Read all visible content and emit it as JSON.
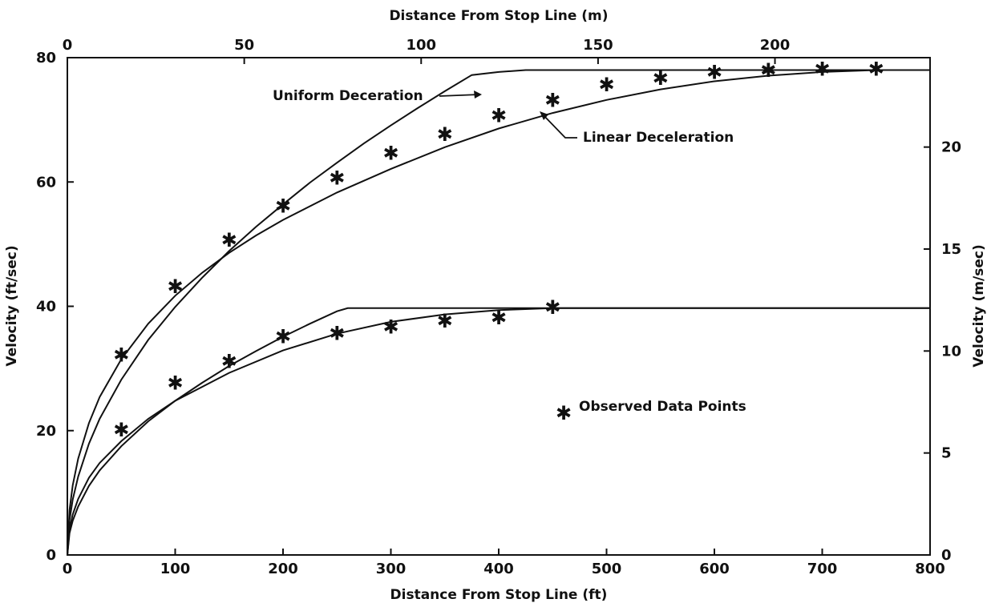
{
  "chart_data": {
    "type": "line",
    "title": "",
    "xlabel": "Distance From Stop Line (ft)",
    "x2label": "Distance From Stop Line (m)",
    "ylabel": "Velocity (ft/sec)",
    "y2label": "Velocity (m/sec)",
    "xlim": [
      0,
      800
    ],
    "ylim": [
      0,
      80
    ],
    "x2lim_m": [
      0,
      243.84
    ],
    "y2lim_ms": [
      0,
      24.384
    ],
    "grid": false,
    "x_ticks": [
      0,
      100,
      200,
      300,
      400,
      500,
      600,
      700,
      800
    ],
    "y_ticks": [
      0,
      20,
      40,
      60,
      80
    ],
    "x2_ticks": [
      0,
      50,
      100,
      150,
      200
    ],
    "y2_ticks": [
      0,
      5,
      10,
      15,
      20
    ],
    "series": [
      {
        "name": "Uniform Deceration",
        "group": "high",
        "x": [
          0,
          2,
          5,
          10,
          20,
          30,
          50,
          75,
          100,
          125,
          150,
          175,
          200,
          225,
          250,
          275,
          300,
          325,
          350,
          375,
          400,
          425,
          800
        ],
        "values": [
          0,
          5.6,
          8.9,
          12.6,
          17.9,
          21.9,
          28.2,
          34.6,
          39.9,
          44.6,
          48.9,
          52.8,
          56.4,
          59.9,
          63.1,
          66.2,
          69.1,
          71.9,
          74.6,
          77.2,
          77.7,
          78,
          78
        ]
      },
      {
        "name": "Linear Deceleration",
        "group": "high",
        "x": [
          0,
          2,
          5,
          10,
          20,
          30,
          50,
          75,
          100,
          125,
          150,
          175,
          200,
          250,
          300,
          350,
          400,
          450,
          500,
          550,
          600,
          650,
          700,
          750,
          800
        ],
        "values": [
          0,
          7.2,
          11.2,
          15.5,
          21.2,
          25.4,
          31.5,
          37.2,
          41.7,
          45.4,
          48.6,
          51.4,
          53.9,
          58.3,
          62.1,
          65.6,
          68.6,
          71.1,
          73.2,
          74.9,
          76.2,
          77.1,
          77.7,
          78,
          78
        ]
      },
      {
        "name": "Uniform Deceration",
        "group": "low",
        "x": [
          0,
          2,
          5,
          10,
          20,
          30,
          50,
          75,
          100,
          125,
          150,
          175,
          200,
          225,
          250,
          260,
          800
        ],
        "values": [
          0,
          3.5,
          5.5,
          7.8,
          11.1,
          13.6,
          17.5,
          21.5,
          24.8,
          27.7,
          30.4,
          32.8,
          35.1,
          37.2,
          39.2,
          39.7,
          39.7
        ]
      },
      {
        "name": "Linear Deceleration",
        "group": "low",
        "x": [
          0,
          2,
          5,
          10,
          20,
          30,
          50,
          75,
          100,
          150,
          200,
          250,
          300,
          350,
          400,
          450,
          800
        ],
        "values": [
          0,
          4.2,
          6.5,
          9.0,
          12.4,
          14.8,
          18.3,
          21.9,
          24.8,
          29.3,
          32.9,
          35.6,
          37.5,
          38.7,
          39.4,
          39.7,
          39.7
        ]
      }
    ],
    "observed_points": {
      "name": "Observed Data Points",
      "high": {
        "x": [
          50,
          100,
          150,
          200,
          250,
          300,
          350,
          400,
          450,
          500,
          550,
          600,
          650,
          700,
          750
        ],
        "values": [
          32,
          43,
          50.5,
          56,
          60.5,
          64.5,
          67.5,
          70.5,
          73,
          75.5,
          76.5,
          77.5,
          77.8,
          78,
          78
        ]
      },
      "low": {
        "x": [
          50,
          100,
          150,
          200,
          250,
          300,
          350,
          400,
          450
        ],
        "values": [
          20,
          27.5,
          31,
          35,
          35.5,
          36.5,
          37.5,
          38,
          39.7
        ]
      }
    },
    "annotations": {
      "uniform_label": "Uniform Deceration",
      "linear_label": "Linear Deceleration",
      "legend_label": "Observed Data Points",
      "legend_marker": "✱"
    }
  }
}
